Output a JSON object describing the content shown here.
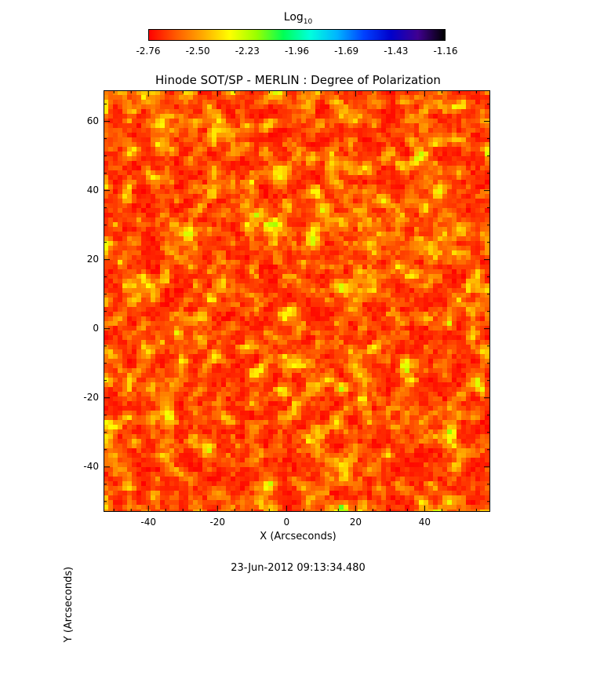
{
  "chart_data": {
    "type": "heatmap",
    "title": "Hinode SOT/SP - MERLIN : Degree of Polarization",
    "xlabel": "X (Arcseconds)",
    "ylabel": "Y (Arcseconds)",
    "xlim": [
      -53,
      59
    ],
    "ylim": [
      -53,
      69
    ],
    "x_ticks": [
      -40,
      -20,
      0,
      20,
      40
    ],
    "y_ticks": [
      -40,
      -20,
      0,
      20,
      40,
      60
    ],
    "colorbar": {
      "label_base": "Log",
      "label_sub": "10",
      "ticks": [
        "-2.76",
        "-2.50",
        "-2.23",
        "-1.96",
        "-1.69",
        "-1.43",
        "-1.16"
      ],
      "range": [
        -2.76,
        -1.16
      ],
      "colormap": [
        "#ff0000",
        "#ff5a00",
        "#ffaa00",
        "#ffff00",
        "#99ff00",
        "#00ff55",
        "#00ffdd",
        "#00b4ff",
        "#0040ff",
        "#0000cc",
        "#400090",
        "#000000"
      ]
    }
  },
  "timestamp": "23-Jun-2012 09:13:34.480"
}
